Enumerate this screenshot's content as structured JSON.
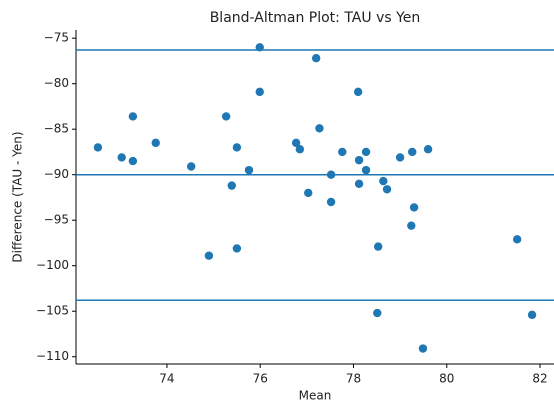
{
  "chart_data": {
    "type": "scatter",
    "title": "Bland-Altman Plot: TAU vs Yen",
    "xlabel": "Mean",
    "ylabel": "Difference (TAU - Yen)",
    "color": "#1f77b4",
    "line_color": "#1f77b4",
    "x": [
      72.52,
      73.03,
      73.27,
      73.27,
      73.76,
      74.52,
      74.9,
      75.27,
      75.5,
      75.39,
      75.5,
      75.76,
      75.99,
      75.99,
      76.77,
      76.85,
      77.03,
      77.2,
      77.27,
      77.52,
      77.52,
      77.76,
      78.1,
      78.12,
      78.27,
      78.27,
      78.12,
      78.53,
      78.51,
      78.64,
      78.72,
      79.0,
      79.26,
      79.3,
      79.24,
      79.6,
      79.49,
      81.51,
      81.83
    ],
    "values": [
      -87.0,
      -88.1,
      -83.6,
      -88.5,
      -86.5,
      -89.1,
      -98.9,
      -83.6,
      -87.0,
      -91.2,
      -98.1,
      -89.5,
      -76.0,
      -80.9,
      -86.5,
      -87.2,
      -92.0,
      -77.2,
      -84.9,
      -90.0,
      -93.0,
      -87.5,
      -80.9,
      -88.4,
      -87.5,
      -89.5,
      -91.0,
      -97.9,
      -105.2,
      -90.7,
      -91.6,
      -88.1,
      -87.5,
      -93.6,
      -95.6,
      -87.2,
      -109.1,
      -97.1,
      -105.4
    ],
    "hlines": [
      -76.3,
      -90.0,
      -103.8
    ],
    "xlim": [
      72.05,
      82.3
    ],
    "ylim": [
      -110.8,
      -74.1
    ],
    "xticks": [
      74,
      76,
      78,
      80,
      82
    ],
    "yticks": [
      {
        "value": -75,
        "label": "−75"
      },
      {
        "value": -80,
        "label": "−80"
      },
      {
        "value": -85,
        "label": "−85"
      },
      {
        "value": -90,
        "label": "−90"
      },
      {
        "value": -95,
        "label": "−95"
      },
      {
        "value": -100,
        "label": "−100"
      },
      {
        "value": -105,
        "label": "−105"
      },
      {
        "value": -110,
        "label": "−110"
      }
    ]
  }
}
